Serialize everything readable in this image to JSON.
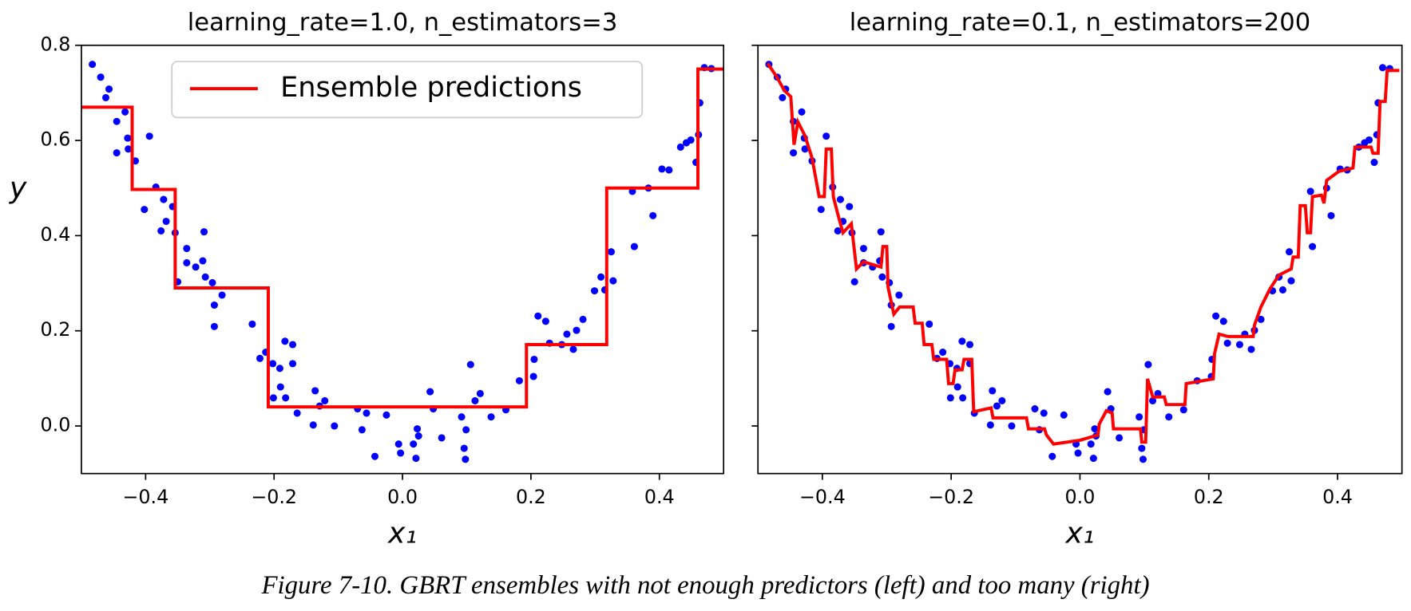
{
  "chart_data": [
    {
      "type": "step",
      "title": "learning_rate=1.0, n_estimators=3",
      "xlabel": "x₁",
      "ylabel": "y",
      "xlim": [
        -0.5,
        0.5
      ],
      "ylim": [
        -0.1,
        0.8
      ],
      "xticks": [
        {
          "value": -0.4,
          "label": "−0.4"
        },
        {
          "value": -0.2,
          "label": "−0.2"
        },
        {
          "value": 0,
          "label": "0.0"
        },
        0.2,
        0.4
      ],
      "yticks": [
        {
          "value": 0,
          "label": "0.0"
        },
        0.2,
        0.4,
        0.6,
        0.8
      ],
      "show_ytick_labels": true,
      "legend": "upper center",
      "scatter": {
        "color": "#0000ff",
        "x": [
          -0.483,
          -0.47,
          -0.462,
          -0.457,
          -0.445,
          -0.445,
          -0.432,
          -0.428,
          -0.427,
          -0.416,
          -0.402,
          -0.394,
          -0.384,
          -0.376,
          -0.372,
          -0.368,
          -0.358,
          -0.354,
          -0.35,
          -0.336,
          -0.336,
          -0.322,
          -0.309,
          -0.311,
          -0.307,
          -0.296,
          -0.293,
          -0.293,
          -0.281,
          -0.234,
          -0.222,
          -0.213,
          -0.202,
          -0.201,
          -0.191,
          -0.19,
          -0.183,
          -0.182,
          -0.171,
          -0.171,
          -0.164,
          -0.136,
          -0.139,
          -0.129,
          -0.121,
          -0.106,
          -0.07,
          -0.063,
          -0.056,
          -0.043,
          -0.025,
          -0.006,
          -0.003,
          0.017,
          0.021,
          0.023,
          0.025,
          0.043,
          0.048,
          0.061,
          0.092,
          0.096,
          0.098,
          0.099,
          0.106,
          0.113,
          0.121,
          0.138,
          0.161,
          0.182,
          0.204,
          0.205,
          0.211,
          0.223,
          0.229,
          0.248,
          0.256,
          0.266,
          0.271,
          0.281,
          0.299,
          0.309,
          0.315,
          0.325,
          0.328,
          0.358,
          0.361,
          0.383,
          0.39,
          0.404,
          0.415,
          0.433,
          0.442,
          0.449,
          0.457,
          0.461,
          0.463,
          0.47,
          0.481
        ],
        "y": [
          0.76,
          0.733,
          0.69,
          0.708,
          0.64,
          0.574,
          0.66,
          0.605,
          0.582,
          0.557,
          0.455,
          0.609,
          0.502,
          0.41,
          0.476,
          0.43,
          0.461,
          0.406,
          0.303,
          0.373,
          0.343,
          0.334,
          0.408,
          0.347,
          0.313,
          0.301,
          0.254,
          0.209,
          0.275,
          0.214,
          0.142,
          0.155,
          0.131,
          0.059,
          0.121,
          0.082,
          0.178,
          0.059,
          0.131,
          0.171,
          0.027,
          0.074,
          0.002,
          0.042,
          0.053,
          0.0,
          0.036,
          -0.008,
          0.027,
          -0.064,
          0.023,
          -0.038,
          -0.057,
          -0.038,
          -0.068,
          -0.006,
          -0.021,
          0.072,
          0.036,
          -0.025,
          0.019,
          -0.047,
          -0.07,
          -0.008,
          0.129,
          0.053,
          0.068,
          0.019,
          0.034,
          0.095,
          0.104,
          0.14,
          0.231,
          0.22,
          0.174,
          0.171,
          0.193,
          0.161,
          0.201,
          0.224,
          0.284,
          0.313,
          0.286,
          0.366,
          0.305,
          0.493,
          0.377,
          0.5,
          0.442,
          0.54,
          0.538,
          0.586,
          0.595,
          0.601,
          0.554,
          0.612,
          0.679,
          0.753,
          0.751
        ]
      },
      "series": [
        {
          "name": "Ensemble predictions",
          "color": "#ff0000",
          "x": [
            -0.5,
            -0.421,
            -0.421,
            -0.354,
            -0.354,
            -0.209,
            -0.209,
            0.193,
            0.193,
            0.318,
            0.318,
            0.46,
            0.46,
            0.5
          ],
          "y": [
            0.67,
            0.67,
            0.497,
            0.497,
            0.29,
            0.29,
            0.04,
            0.04,
            0.171,
            0.171,
            0.5,
            0.5,
            0.75,
            0.75
          ]
        }
      ]
    },
    {
      "type": "step",
      "title": "learning_rate=0.1, n_estimators=200",
      "xlabel": "x₁",
      "xlim": [
        -0.5,
        0.5
      ],
      "ylim": [
        -0.1,
        0.8
      ],
      "xticks": [
        {
          "value": -0.4,
          "label": "−0.4"
        },
        {
          "value": -0.2,
          "label": "−0.2"
        },
        {
          "value": 0,
          "label": "0.0"
        },
        0.2,
        0.4
      ],
      "yticks": [
        0,
        0.2,
        0.4,
        0.6,
        0.8
      ],
      "show_ytick_labels": false,
      "scatter": {
        "color": "#0000ff",
        "x": [
          -0.483,
          -0.47,
          -0.462,
          -0.457,
          -0.445,
          -0.445,
          -0.432,
          -0.428,
          -0.427,
          -0.416,
          -0.402,
          -0.394,
          -0.384,
          -0.376,
          -0.372,
          -0.368,
          -0.358,
          -0.354,
          -0.35,
          -0.336,
          -0.336,
          -0.322,
          -0.309,
          -0.311,
          -0.307,
          -0.296,
          -0.293,
          -0.293,
          -0.281,
          -0.234,
          -0.222,
          -0.213,
          -0.202,
          -0.201,
          -0.191,
          -0.19,
          -0.183,
          -0.182,
          -0.171,
          -0.171,
          -0.164,
          -0.136,
          -0.139,
          -0.129,
          -0.121,
          -0.106,
          -0.07,
          -0.063,
          -0.056,
          -0.043,
          -0.025,
          -0.006,
          -0.003,
          0.017,
          0.021,
          0.023,
          0.025,
          0.043,
          0.048,
          0.061,
          0.092,
          0.096,
          0.098,
          0.099,
          0.106,
          0.113,
          0.121,
          0.138,
          0.161,
          0.182,
          0.204,
          0.205,
          0.211,
          0.223,
          0.229,
          0.248,
          0.256,
          0.266,
          0.271,
          0.281,
          0.299,
          0.309,
          0.315,
          0.325,
          0.328,
          0.358,
          0.361,
          0.383,
          0.39,
          0.404,
          0.415,
          0.433,
          0.442,
          0.449,
          0.457,
          0.461,
          0.463,
          0.47,
          0.481
        ],
        "y": [
          0.76,
          0.733,
          0.69,
          0.708,
          0.64,
          0.574,
          0.66,
          0.605,
          0.582,
          0.557,
          0.455,
          0.609,
          0.502,
          0.41,
          0.476,
          0.43,
          0.461,
          0.406,
          0.303,
          0.373,
          0.343,
          0.334,
          0.408,
          0.347,
          0.313,
          0.301,
          0.254,
          0.209,
          0.275,
          0.214,
          0.142,
          0.155,
          0.131,
          0.059,
          0.121,
          0.082,
          0.178,
          0.059,
          0.131,
          0.171,
          0.027,
          0.074,
          0.002,
          0.042,
          0.053,
          0.0,
          0.036,
          -0.008,
          0.027,
          -0.064,
          0.023,
          -0.038,
          -0.057,
          -0.038,
          -0.068,
          -0.006,
          -0.021,
          0.072,
          0.036,
          -0.025,
          0.019,
          -0.047,
          -0.07,
          -0.008,
          0.129,
          0.053,
          0.068,
          0.019,
          0.034,
          0.095,
          0.104,
          0.14,
          0.231,
          0.22,
          0.174,
          0.171,
          0.193,
          0.161,
          0.201,
          0.224,
          0.284,
          0.313,
          0.286,
          0.366,
          0.305,
          0.493,
          0.377,
          0.5,
          0.442,
          0.54,
          0.538,
          0.586,
          0.595,
          0.601,
          0.554,
          0.612,
          0.679,
          0.753,
          0.751
        ]
      },
      "series": [
        {
          "color": "#ff0000",
          "x": [
            -0.485,
            -0.471,
            -0.459,
            -0.449,
            -0.444,
            -0.438,
            -0.427,
            -0.416,
            -0.405,
            -0.397,
            -0.394,
            -0.386,
            -0.383,
            -0.375,
            -0.368,
            -0.355,
            -0.347,
            -0.336,
            -0.309,
            -0.306,
            -0.3,
            -0.298,
            -0.289,
            -0.28,
            -0.259,
            -0.256,
            -0.245,
            -0.242,
            -0.23,
            -0.227,
            -0.207,
            -0.204,
            -0.197,
            -0.194,
            -0.183,
            -0.18,
            -0.168,
            -0.165,
            -0.138,
            -0.135,
            -0.083,
            -0.08,
            -0.055,
            -0.052,
            -0.041,
            0.0,
            0.028,
            0.03,
            0.041,
            0.05,
            0.052,
            0.094,
            0.096,
            0.102,
            0.105,
            0.113,
            0.131,
            0.134,
            0.163,
            0.165,
            0.207,
            0.209,
            0.216,
            0.23,
            0.269,
            0.271,
            0.281,
            0.295,
            0.309,
            0.328,
            0.331,
            0.339,
            0.342,
            0.35,
            0.353,
            0.358,
            0.361,
            0.375,
            0.379,
            0.383,
            0.402,
            0.424,
            0.427,
            0.452,
            0.455,
            0.463,
            0.466,
            0.474,
            0.477,
            0.496
          ],
          "y": [
            0.762,
            0.734,
            0.705,
            0.692,
            0.591,
            0.639,
            0.61,
            0.563,
            0.482,
            0.482,
            0.582,
            0.582,
            0.482,
            0.44,
            0.406,
            0.425,
            0.33,
            0.345,
            0.334,
            0.377,
            0.377,
            0.292,
            0.235,
            0.25,
            0.25,
            0.216,
            0.216,
            0.171,
            0.171,
            0.14,
            0.14,
            0.089,
            0.089,
            0.118,
            0.118,
            0.14,
            0.14,
            0.03,
            0.038,
            0.017,
            0.017,
            -0.006,
            -0.006,
            -0.019,
            -0.038,
            -0.03,
            -0.019,
            0.004,
            0.032,
            0.027,
            -0.006,
            -0.006,
            -0.034,
            -0.034,
            0.099,
            0.061,
            0.061,
            0.045,
            0.045,
            0.089,
            0.099,
            0.152,
            0.193,
            0.188,
            0.188,
            0.212,
            0.25,
            0.288,
            0.317,
            0.33,
            0.355,
            0.355,
            0.463,
            0.463,
            0.406,
            0.406,
            0.482,
            0.485,
            0.468,
            0.516,
            0.535,
            0.542,
            0.586,
            0.586,
            0.573,
            0.573,
            0.682,
            0.682,
            0.747,
            0.747
          ]
        }
      ]
    }
  ],
  "caption": "Figure 7-10. GBRT ensembles with not enough predictors (left) and too many (right)"
}
